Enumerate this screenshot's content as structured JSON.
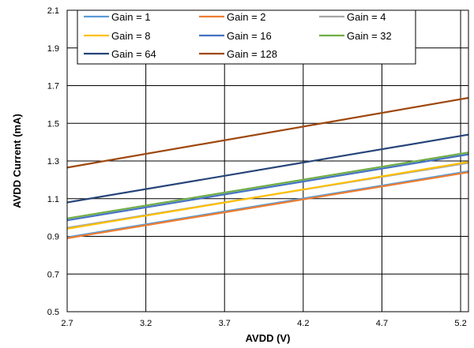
{
  "chart_data": {
    "type": "line",
    "xlabel": "AVDD (V)",
    "ylabel": "AVDD Current (mA)",
    "xlim": [
      2.7,
      5.25
    ],
    "ylim": [
      0.5,
      2.1
    ],
    "x_ticks": [
      "2.7",
      "3.2",
      "3.7",
      "4.2",
      "4.7",
      "5.2"
    ],
    "y_ticks": [
      "0.5",
      "0.7",
      "0.9",
      "1.1",
      "1.3",
      "1.5",
      "1.7",
      "1.9",
      "2.1"
    ],
    "grid": true,
    "legend_position": "top",
    "x": [
      2.7,
      5.25
    ],
    "series": [
      {
        "name": "Gain = 1",
        "color": "#5b9bd5",
        "values": [
          0.895,
          1.245
        ]
      },
      {
        "name": "Gain = 2",
        "color": "#ed7d31",
        "values": [
          0.89,
          1.24
        ]
      },
      {
        "name": "Gain = 4",
        "color": "#a5a5a5",
        "values": [
          0.945,
          1.29
        ]
      },
      {
        "name": "Gain = 8",
        "color": "#ffc000",
        "values": [
          0.94,
          1.295
        ]
      },
      {
        "name": "Gain = 16",
        "color": "#4472c4",
        "values": [
          0.985,
          1.335
        ]
      },
      {
        "name": "Gain = 32",
        "color": "#70ad47",
        "values": [
          0.995,
          1.345
        ]
      },
      {
        "name": "Gain = 64",
        "color": "#264478",
        "values": [
          1.08,
          1.44
        ]
      },
      {
        "name": "Gain = 128",
        "color": "#9e480e",
        "values": [
          1.265,
          1.635
        ]
      }
    ]
  }
}
